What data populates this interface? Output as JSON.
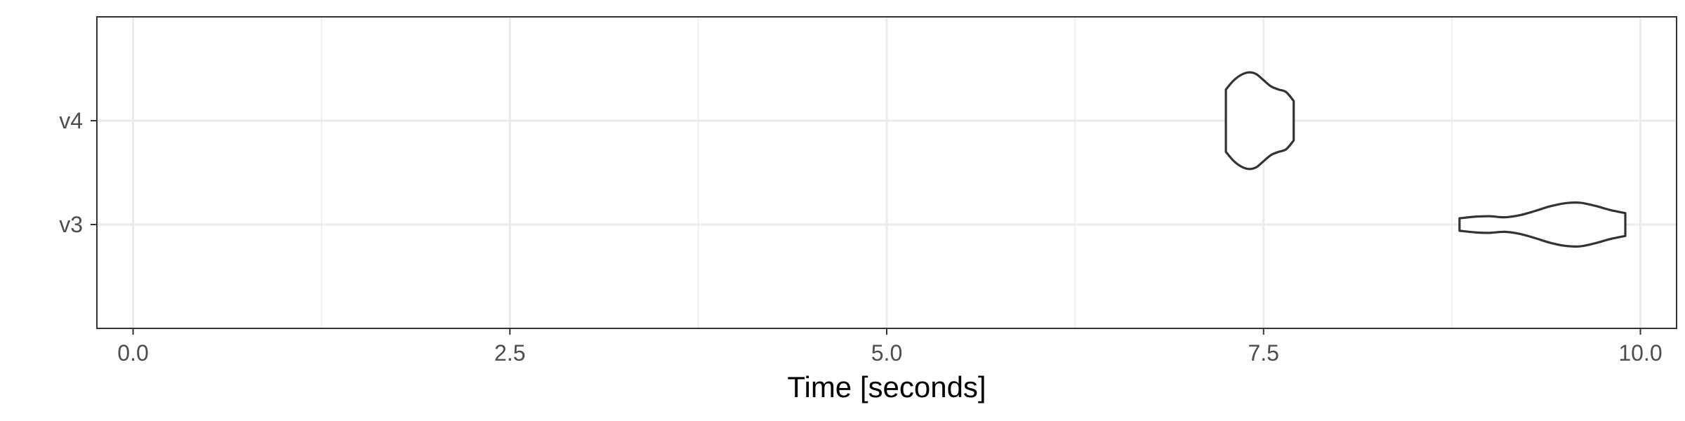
{
  "chart_data": {
    "type": "violin",
    "title": "",
    "xlabel": "Time [seconds]",
    "ylabel": "",
    "xlim": [
      -0.24,
      10.24
    ],
    "x_ticks": [
      0.0,
      2.5,
      5.0,
      7.5,
      10.0
    ],
    "x_tick_labels": [
      "0.0",
      "2.5",
      "5.0",
      "7.5",
      "10.0"
    ],
    "categories": [
      "v3",
      "v4"
    ],
    "grid": true,
    "series": [
      {
        "category": "v4",
        "min": 7.25,
        "max": 7.7,
        "density": [
          [
            7.25,
            0.6
          ],
          [
            7.3,
            0.77
          ],
          [
            7.35,
            0.88
          ],
          [
            7.4,
            0.93
          ],
          [
            7.45,
            0.9
          ],
          [
            7.5,
            0.78
          ],
          [
            7.55,
            0.66
          ],
          [
            7.6,
            0.6
          ],
          [
            7.65,
            0.55
          ],
          [
            7.7,
            0.38
          ]
        ]
      },
      {
        "category": "v3",
        "min": 8.8,
        "max": 9.9,
        "density": [
          [
            8.8,
            0.12
          ],
          [
            8.9,
            0.15
          ],
          [
            9.0,
            0.16
          ],
          [
            9.1,
            0.14
          ],
          [
            9.2,
            0.18
          ],
          [
            9.3,
            0.26
          ],
          [
            9.4,
            0.35
          ],
          [
            9.5,
            0.41
          ],
          [
            9.6,
            0.42
          ],
          [
            9.7,
            0.36
          ],
          [
            9.8,
            0.28
          ],
          [
            9.9,
            0.22
          ]
        ]
      }
    ]
  },
  "colors": {
    "outline": "#333333",
    "grid": "#ebebeb",
    "panel_border": "#333333",
    "tick_text": "#4d4d4d",
    "title_text": "#000000"
  }
}
